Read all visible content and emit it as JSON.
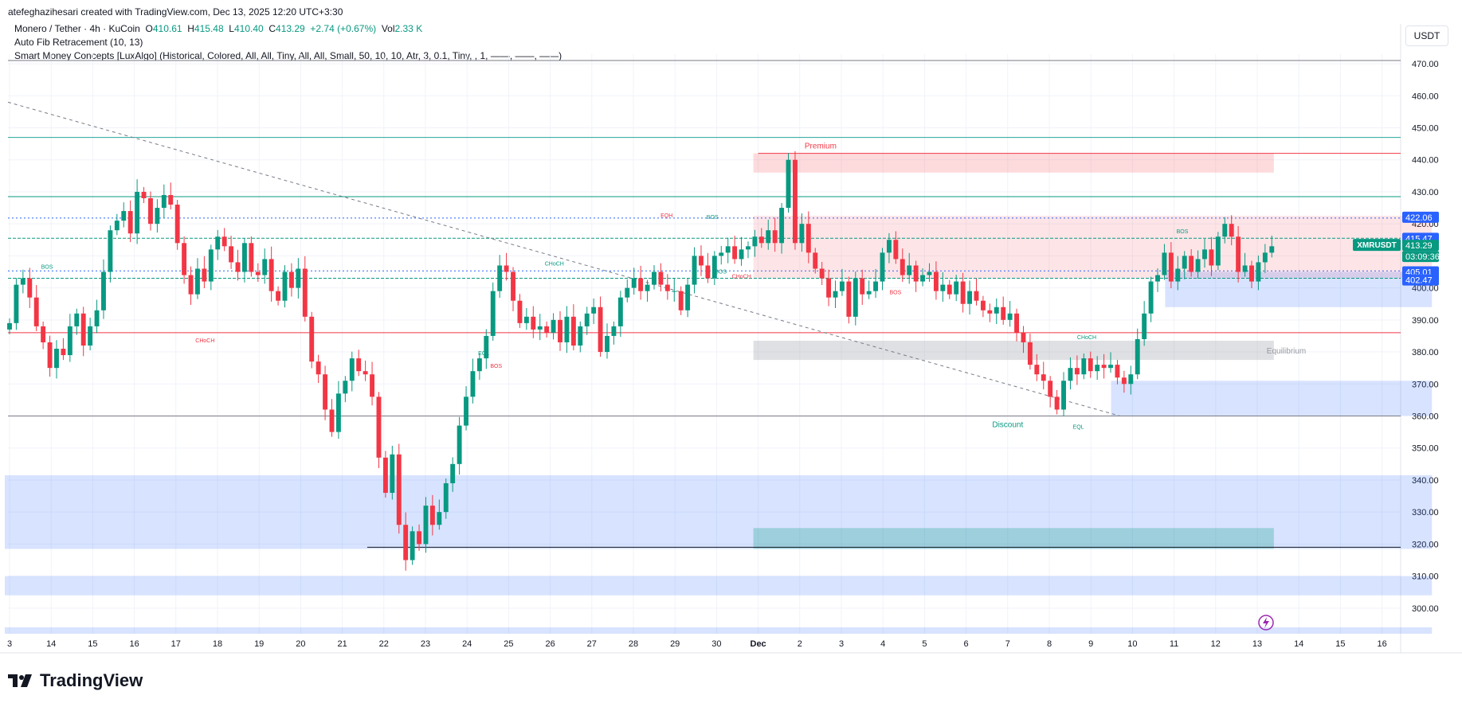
{
  "header": {
    "attribution": "atefeghazihesari created with TradingView.com, Dec 13, 2025 12:20 UTC+3:30"
  },
  "legend": {
    "symbol": "Monero / Tether · 4h · KuCoin",
    "open_label": "O",
    "open": "410.61",
    "high_label": "H",
    "high": "415.48",
    "low_label": "L",
    "low": "410.40",
    "close_label": "C",
    "close": "413.29",
    "change": "+2.74 (+0.67%)",
    "vol_label": "Vol",
    "vol": "2.33 K",
    "indicator1": "Auto Fib Retracement (10, 13)",
    "indicator2": "Smart Money Concepts [LuxAlgo] (Historical, Colored, All, All, Tiny, All, All, Small, 50, 10, 10, Atr, 3, 0.1, Tiny, , 1, ——, ——, ——)"
  },
  "currency": "USDT",
  "brand": {
    "name": "TradingView"
  },
  "colors": {
    "up": "#089981",
    "down": "#f23645",
    "zone_red": "#f23645",
    "zone_blue": "#2962ff",
    "grid": "#f0f3fa"
  },
  "chart_data": {
    "type": "candlestick",
    "symbol": "XMRUSDT",
    "timeframe": "4h",
    "x_ticks": [
      "3",
      "14",
      "15",
      "16",
      "17",
      "18",
      "19",
      "20",
      "21",
      "22",
      "23",
      "24",
      "25",
      "26",
      "27",
      "28",
      "29",
      "30",
      "Dec",
      "2",
      "3",
      "4",
      "5",
      "6",
      "7",
      "8",
      "9",
      "10",
      "11",
      "12",
      "13",
      "14",
      "15",
      "16"
    ],
    "y_ticks": [
      "470.00",
      "460.00",
      "450.00",
      "440.00",
      "430.00",
      "420.00",
      "410.00",
      "400.00",
      "390.00",
      "380.00",
      "370.00",
      "360.00",
      "350.00",
      "340.00",
      "330.00",
      "320.00",
      "310.00",
      "300.00"
    ],
    "ylim": [
      292,
      473
    ],
    "price_labels": [
      {
        "value": 422.06,
        "text": "422.06",
        "color": "#2962ff"
      },
      {
        "value": 415.47,
        "text": "415.47",
        "color": "#2962ff"
      },
      {
        "value": 413.29,
        "text": "413.29",
        "color": "#089981"
      },
      {
        "value": 405.01,
        "text": "405.01",
        "color": "#2962ff"
      },
      {
        "value": 402.47,
        "text": "402.47",
        "color": "#2962ff"
      }
    ],
    "last_label": {
      "name": "XMRUSDT",
      "price": "413.29",
      "countdown": "03:09:36"
    },
    "annotations": [
      {
        "text": "Premium",
        "color": "#f23645"
      },
      {
        "text": "Equilibrium",
        "color": "#9598a1"
      },
      {
        "text": "Discount",
        "color": "#089981"
      },
      {
        "text": "BOS",
        "color": "#089981"
      },
      {
        "text": "CHoCH",
        "color": "#f23645"
      },
      {
        "text": "CHoCH",
        "color": "#089981"
      },
      {
        "text": "EQL",
        "color": "#089981"
      },
      {
        "text": "BOS",
        "color": "#f23645"
      },
      {
        "text": "EQH",
        "color": "#f23645"
      },
      {
        "text": "BOS",
        "color": "#089981"
      },
      {
        "text": "BOS",
        "color": "#089981"
      },
      {
        "text": "CHoCH",
        "color": "#f23645"
      },
      {
        "text": "BOS",
        "color": "#f23645"
      },
      {
        "text": "CHoCH",
        "color": "#089981"
      },
      {
        "text": "EQL",
        "color": "#089981"
      },
      {
        "text": "BOS",
        "color": "#089981"
      }
    ],
    "closes": [
      389,
      401,
      403,
      397,
      388,
      383,
      375,
      381,
      379,
      388,
      392,
      382,
      388,
      393,
      405,
      418,
      421,
      424,
      417,
      430,
      428,
      420,
      425,
      429,
      426,
      414,
      404,
      398,
      406,
      402,
      412,
      416,
      413,
      408,
      405,
      414,
      405,
      404,
      409,
      399,
      396,
      405,
      400,
      406,
      391,
      377,
      373,
      362,
      355,
      367,
      371,
      378,
      374,
      373,
      366,
      347,
      336,
      348,
      326,
      315,
      324,
      320,
      332,
      326,
      330,
      339,
      345,
      357,
      366,
      374,
      378,
      385,
      399,
      407,
      405,
      396,
      389,
      391,
      387,
      388,
      386,
      390,
      383,
      391,
      382,
      388,
      392,
      394,
      380,
      385,
      388,
      397,
      400,
      403,
      399,
      401,
      405,
      401,
      399,
      399,
      393,
      401,
      410,
      407,
      403,
      410,
      411,
      413,
      409,
      412,
      413,
      416,
      414,
      418,
      414,
      425,
      440,
      414,
      420,
      411,
      406,
      403,
      397,
      399,
      402,
      391,
      403,
      398,
      399,
      402,
      411,
      415,
      409,
      404,
      407,
      402,
      404,
      405,
      399,
      401,
      398,
      402,
      395,
      399,
      396,
      393,
      392,
      394,
      390,
      392,
      386,
      383,
      376,
      373,
      371,
      366,
      362,
      371,
      375,
      373,
      378,
      374,
      376,
      375,
      376,
      372,
      370,
      373,
      384,
      392,
      402,
      404,
      411,
      402,
      406,
      410,
      405,
      409,
      412,
      407,
      416,
      420,
      416,
      405,
      407,
      402,
      408,
      411,
      413
    ],
    "x_day_index": {
      "note": "candles every 4h (6 per day)"
    }
  }
}
